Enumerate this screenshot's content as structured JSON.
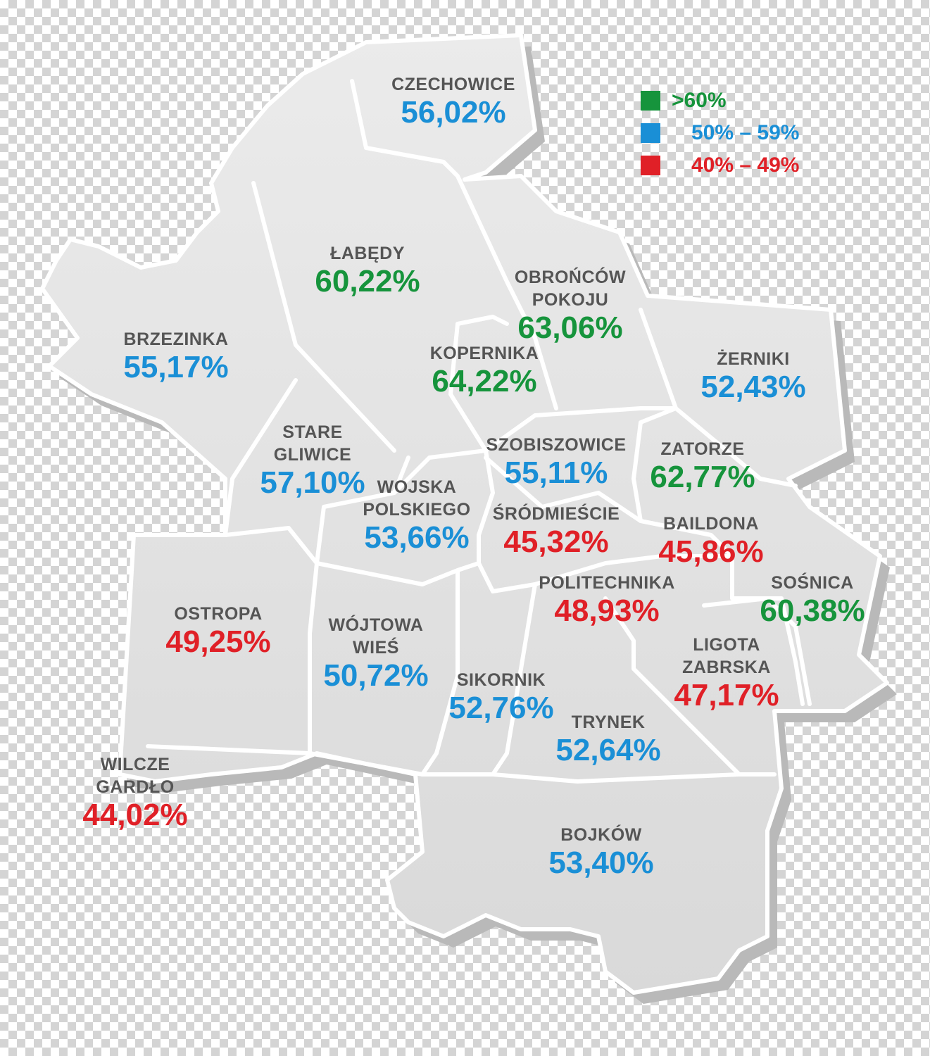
{
  "legend": [
    {
      "label": ">60%",
      "color": "#16943c"
    },
    {
      "label": "50% – 59%",
      "color": "#1a8fd6"
    },
    {
      "label": "40% – 49%",
      "color": "#e02027"
    }
  ],
  "colors": {
    "high": "#16943c",
    "mid": "#1a8fd6",
    "low": "#e02027",
    "name": "#555555",
    "land": "#e3e3e3",
    "border": "#ffffff",
    "shadow": "#b9b9b9"
  },
  "districts": [
    {
      "id": "czechowice",
      "name_lines": [
        "CZECHOWICE"
      ],
      "value": "56,02%",
      "tier": "mid"
    },
    {
      "id": "labedy",
      "name_lines": [
        "ŁABĘDY"
      ],
      "value": "60,22%",
      "tier": "high"
    },
    {
      "id": "obroncow-pokoju",
      "name_lines": [
        "OBROŃCÓW",
        "POKOJU"
      ],
      "value": "63,06%",
      "tier": "high"
    },
    {
      "id": "brzezinka",
      "name_lines": [
        "BRZEZINKA"
      ],
      "value": "55,17%",
      "tier": "mid"
    },
    {
      "id": "kopernika",
      "name_lines": [
        "KOPERNIKA"
      ],
      "value": "64,22%",
      "tier": "high"
    },
    {
      "id": "zerniki",
      "name_lines": [
        "ŻERNIKI"
      ],
      "value": "52,43%",
      "tier": "mid"
    },
    {
      "id": "stare-gliwice",
      "name_lines": [
        "STARE",
        "GLIWICE"
      ],
      "value": "57,10%",
      "tier": "mid"
    },
    {
      "id": "szobiszowice",
      "name_lines": [
        "SZOBISZOWICE"
      ],
      "value": "55,11%",
      "tier": "mid"
    },
    {
      "id": "zatorze",
      "name_lines": [
        "ZATORZE"
      ],
      "value": "62,77%",
      "tier": "high"
    },
    {
      "id": "wojska-polskiego",
      "name_lines": [
        "WOJSKA",
        "POLSKIEGO"
      ],
      "value": "53,66%",
      "tier": "mid"
    },
    {
      "id": "srodmiescie",
      "name_lines": [
        "ŚRÓDMIEŚCIE"
      ],
      "value": "45,32%",
      "tier": "low"
    },
    {
      "id": "baildona",
      "name_lines": [
        "BAILDONA"
      ],
      "value": "45,86%",
      "tier": "low"
    },
    {
      "id": "politechnika",
      "name_lines": [
        "POLITECHNIKA"
      ],
      "value": "48,93%",
      "tier": "low"
    },
    {
      "id": "sosnica",
      "name_lines": [
        "SOŚNICA"
      ],
      "value": "60,38%",
      "tier": "high"
    },
    {
      "id": "ostropa",
      "name_lines": [
        "OSTROPA"
      ],
      "value": "49,25%",
      "tier": "low"
    },
    {
      "id": "wojtowa-wies",
      "name_lines": [
        "WÓJTOWA",
        "WIEŚ"
      ],
      "value": "50,72%",
      "tier": "mid"
    },
    {
      "id": "ligota-zabrska",
      "name_lines": [
        "LIGOTA",
        "ZABRSKA"
      ],
      "value": "47,17%",
      "tier": "low"
    },
    {
      "id": "sikornik",
      "name_lines": [
        "SIKORNIK"
      ],
      "value": "52,76%",
      "tier": "mid"
    },
    {
      "id": "trynek",
      "name_lines": [
        "TRYNEK"
      ],
      "value": "52,64%",
      "tier": "mid"
    },
    {
      "id": "wilcze-gardlo",
      "name_lines": [
        "WILCZE",
        "GARDŁO"
      ],
      "value": "44,02%",
      "tier": "low"
    },
    {
      "id": "bojkow",
      "name_lines": [
        "BOJKÓW"
      ],
      "value": "53,40%",
      "tier": "mid"
    }
  ]
}
